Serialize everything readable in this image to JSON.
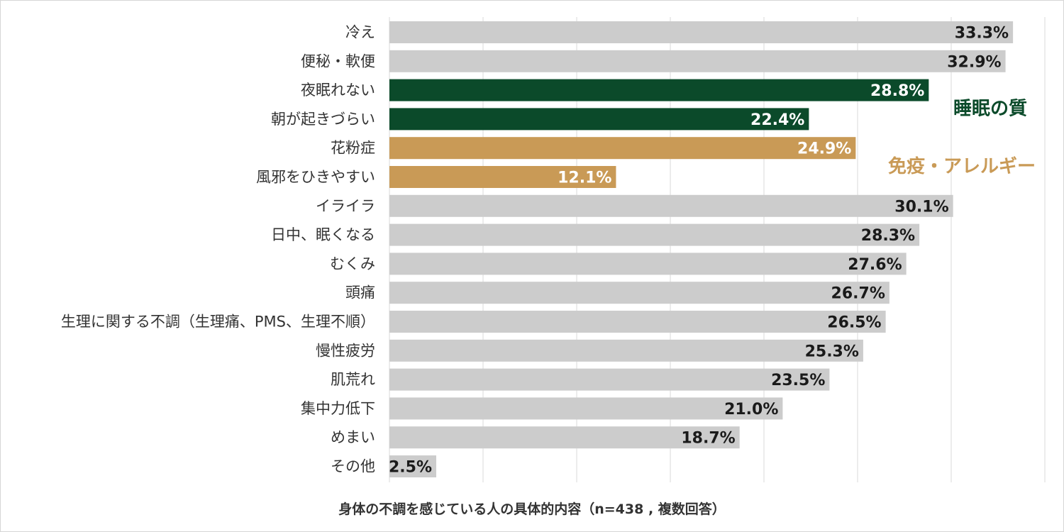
{
  "chart_data": {
    "type": "bar",
    "orientation": "horizontal",
    "title": "身体の不調を感じている人の具体的内容（n=438 , 複数回答）",
    "xlim": [
      0,
      35
    ],
    "grid": true,
    "categories": [
      "冷え",
      "便秘・軟便",
      "夜眠れない",
      "朝が起きづらい",
      "花粉症",
      "風邪をひきやすい",
      "イライラ",
      "日中、眠くなる",
      "むくみ",
      "頭痛",
      "生理に関する不調（生理痛、PMS、生理不順）",
      "慢性疲労",
      "肌荒れ",
      "集中力低下",
      "めまい",
      "その他"
    ],
    "values": [
      33.3,
      32.9,
      28.8,
      22.4,
      24.9,
      12.1,
      30.1,
      28.3,
      27.6,
      26.7,
      26.5,
      25.3,
      23.5,
      21.0,
      18.7,
      2.5
    ],
    "value_labels": [
      "33.3%",
      "32.9%",
      "28.8%",
      "22.4%",
      "24.9%",
      "12.1%",
      "30.1%",
      "28.3%",
      "27.6%",
      "26.7%",
      "26.5%",
      "25.3%",
      "23.5%",
      "21.0%",
      "18.7%",
      "2.5%"
    ],
    "bar_group": [
      "default",
      "default",
      "sleep",
      "sleep",
      "immune",
      "immune",
      "default",
      "default",
      "default",
      "default",
      "default",
      "default",
      "default",
      "default",
      "default",
      "default"
    ],
    "groups": {
      "sleep": {
        "label": "睡眠の質",
        "color": "#0b4a2a",
        "text_color": "#ffffff"
      },
      "immune": {
        "label": "免疫・アレルギー",
        "color": "#c99a56",
        "text_color": "#ffffff"
      },
      "default": {
        "label": "",
        "color": "#cccccc",
        "text_color": "#1a1a1a"
      }
    }
  }
}
